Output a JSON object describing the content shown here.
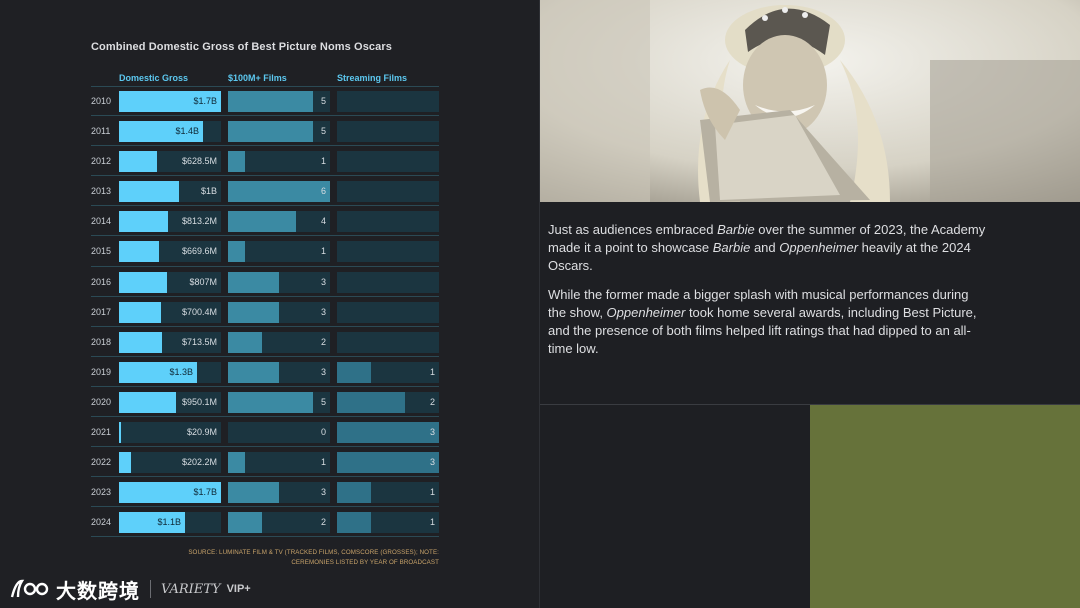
{
  "chart_data": {
    "type": "bar",
    "title": "Combined Domestic Gross of Best Picture Noms Oscars",
    "columns": [
      "Domestic Gross",
      "$100M+ Films",
      "Streaming Films"
    ],
    "categories": [
      "2010",
      "2011",
      "2012",
      "2013",
      "2014",
      "2015",
      "2016",
      "2017",
      "2018",
      "2019",
      "2020",
      "2021",
      "2022",
      "2023",
      "2024"
    ],
    "series": [
      {
        "name": "Domestic Gross",
        "values": [
          1.7,
          1.4,
          0.6285,
          1.0,
          0.8132,
          0.6696,
          0.807,
          0.7004,
          0.7135,
          1.3,
          0.9501,
          0.0209,
          0.2022,
          1.7,
          1.1
        ],
        "labels": [
          "$1.7B",
          "$1.4B",
          "$628.5M",
          "$1B",
          "$813.2M",
          "$669.6M",
          "$807M",
          "$700.4M",
          "$713.5M",
          "$1.3B",
          "$950.1M",
          "$20.9M",
          "$202.2M",
          "$1.7B",
          "$1.1B"
        ],
        "max": 1.7
      },
      {
        "name": "$100M+ Films",
        "values": [
          5,
          5,
          1,
          6,
          4,
          1,
          3,
          3,
          2,
          3,
          5,
          0,
          1,
          3,
          2
        ],
        "labels": [
          "5",
          "5",
          "1",
          "6",
          "4",
          "1",
          "3",
          "3",
          "2",
          "3",
          "5",
          "0",
          "1",
          "3",
          "2"
        ],
        "max": 6
      },
      {
        "name": "Streaming Films",
        "values": [
          0,
          0,
          0,
          0,
          0,
          0,
          0,
          0,
          0,
          1,
          2,
          3,
          3,
          1,
          1
        ],
        "labels": [
          "",
          "",
          "",
          "",
          "",
          "",
          "",
          "",
          "",
          "1",
          "2",
          "3",
          "3",
          "1",
          "1"
        ],
        "max": 3
      }
    ],
    "source": "SOURCE: LUMINATE FILM & TV (TRACKED FILMS, COMSCORE (GROSSES); NOTE: CEREMONIES LISTED BY YEAR OF BROADCAST",
    "colors": {
      "gross": "#5ed0fa",
      "films": "#3b8aa3",
      "stream": "#2f7188",
      "track": "#1b3540",
      "header": "#5cc8f0"
    }
  },
  "article": {
    "p1_a": "Just as audiences embraced ",
    "p1_b": "Barbie",
    "p1_c": " over the summer of 2023, the Academy made it a point to showcase ",
    "p1_d": "Barbie",
    "p1_e": " and ",
    "p1_f": "Oppenheimer",
    "p1_g": " heavily at the 2024 Oscars.",
    "p2_a": "While the former made a bigger splash with musical performances during the show, ",
    "p2_b": "Oppenheimer",
    "p2_c": " took home several awards, including Best Picture, and the presence of both films helped lift ratings that had dipped to an all-time low."
  },
  "watermark": {
    "name": "大数跨境",
    "variety": "VARIETY",
    "vip": "VIP+"
  }
}
